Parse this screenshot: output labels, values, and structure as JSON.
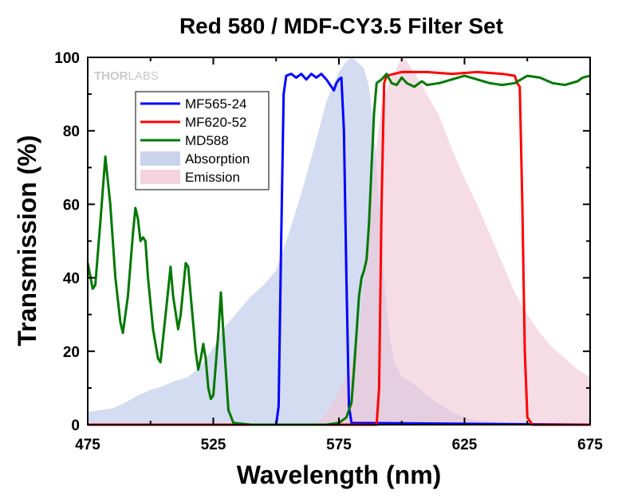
{
  "chart_data": {
    "type": "line",
    "title": "Red 580 / MDF-CY3.5 Filter Set",
    "xlabel": "Wavelength (nm)",
    "ylabel": "Transmission (%)",
    "xlim": [
      475,
      675
    ],
    "ylim": [
      0,
      100
    ],
    "xticks": [
      475,
      525,
      575,
      625,
      675
    ],
    "yticks": [
      0,
      20,
      40,
      60,
      80,
      100
    ],
    "grid": false,
    "legend_position": "top-left",
    "watermark": {
      "text_a": "THOR",
      "text_b": "LABS"
    },
    "series": [
      {
        "name": "MF565-24",
        "kind": "line",
        "color": "#0000ff",
        "points": [
          [
            475,
            0
          ],
          [
            550,
            0
          ],
          [
            551,
            5
          ],
          [
            552,
            50
          ],
          [
            553,
            90
          ],
          [
            554,
            95
          ],
          [
            556,
            95.5
          ],
          [
            558,
            94.5
          ],
          [
            560,
            95.5
          ],
          [
            562,
            94
          ],
          [
            564,
            95.5
          ],
          [
            566,
            94.5
          ],
          [
            568,
            95.5
          ],
          [
            570,
            94
          ],
          [
            572,
            92
          ],
          [
            573,
            91
          ],
          [
            574,
            93
          ],
          [
            575,
            94
          ],
          [
            576,
            94.5
          ],
          [
            577,
            80
          ],
          [
            578,
            40
          ],
          [
            579,
            5
          ],
          [
            580,
            0.5
          ],
          [
            675,
            0
          ]
        ]
      },
      {
        "name": "MF620-52",
        "kind": "line",
        "color": "#ff0000",
        "points": [
          [
            475,
            0
          ],
          [
            590,
            0
          ],
          [
            591,
            10
          ],
          [
            592,
            60
          ],
          [
            593,
            93
          ],
          [
            594,
            95
          ],
          [
            600,
            96
          ],
          [
            610,
            96
          ],
          [
            620,
            95.5
          ],
          [
            630,
            96
          ],
          [
            640,
            95.5
          ],
          [
            645,
            95
          ],
          [
            646,
            93
          ],
          [
            647,
            92
          ],
          [
            648,
            60
          ],
          [
            649,
            20
          ],
          [
            650,
            2
          ],
          [
            652,
            0
          ],
          [
            675,
            0
          ]
        ]
      },
      {
        "name": "MD588",
        "kind": "line",
        "color": "#007700",
        "points": [
          [
            475,
            44
          ],
          [
            477,
            37
          ],
          [
            478,
            38
          ],
          [
            480,
            55
          ],
          [
            482,
            73
          ],
          [
            484,
            60
          ],
          [
            486,
            40
          ],
          [
            488,
            28
          ],
          [
            489,
            25
          ],
          [
            491,
            35
          ],
          [
            493,
            52
          ],
          [
            494,
            59
          ],
          [
            495,
            56
          ],
          [
            496,
            50
          ],
          [
            497,
            51
          ],
          [
            498,
            50
          ],
          [
            499,
            40
          ],
          [
            501,
            26
          ],
          [
            503,
            18
          ],
          [
            504,
            17
          ],
          [
            506,
            30
          ],
          [
            508,
            43
          ],
          [
            509,
            35
          ],
          [
            511,
            26
          ],
          [
            512,
            30
          ],
          [
            514,
            44
          ],
          [
            515,
            43
          ],
          [
            516,
            35
          ],
          [
            518,
            20
          ],
          [
            519,
            15
          ],
          [
            520,
            18
          ],
          [
            521,
            22
          ],
          [
            522,
            18
          ],
          [
            523,
            10
          ],
          [
            524,
            7
          ],
          [
            525,
            8
          ],
          [
            527,
            25
          ],
          [
            528,
            36
          ],
          [
            529,
            25
          ],
          [
            531,
            4
          ],
          [
            533,
            0.5
          ],
          [
            540,
            0
          ],
          [
            570,
            0
          ],
          [
            575,
            0.5
          ],
          [
            578,
            2
          ],
          [
            580,
            6
          ],
          [
            581,
            15
          ],
          [
            582,
            25
          ],
          [
            583,
            35
          ],
          [
            584,
            40
          ],
          [
            585,
            42
          ],
          [
            586,
            45
          ],
          [
            587,
            55
          ],
          [
            588,
            70
          ],
          [
            589,
            85
          ],
          [
            590,
            93
          ],
          [
            592,
            94
          ],
          [
            594,
            95.5
          ],
          [
            596,
            93
          ],
          [
            598,
            92.5
          ],
          [
            600,
            94.5
          ],
          [
            602,
            93
          ],
          [
            605,
            92
          ],
          [
            608,
            93.5
          ],
          [
            610,
            92.5
          ],
          [
            615,
            93
          ],
          [
            620,
            94
          ],
          [
            625,
            95
          ],
          [
            630,
            94
          ],
          [
            635,
            93
          ],
          [
            640,
            92.5
          ],
          [
            645,
            93
          ],
          [
            650,
            95
          ],
          [
            655,
            94.5
          ],
          [
            660,
            93
          ],
          [
            665,
            92.5
          ],
          [
            670,
            93.5
          ],
          [
            672,
            94.5
          ],
          [
            675,
            95
          ]
        ]
      },
      {
        "name": "Absorption",
        "kind": "area",
        "color": "#b8c4e8",
        "points": [
          [
            475,
            3.5
          ],
          [
            480,
            4
          ],
          [
            485,
            4.5
          ],
          [
            490,
            6
          ],
          [
            495,
            8
          ],
          [
            500,
            9.5
          ],
          [
            505,
            10.5
          ],
          [
            510,
            12
          ],
          [
            515,
            13
          ],
          [
            520,
            16
          ],
          [
            525,
            21
          ],
          [
            530,
            27
          ],
          [
            535,
            31
          ],
          [
            540,
            35
          ],
          [
            545,
            38
          ],
          [
            550,
            42
          ],
          [
            555,
            52
          ],
          [
            560,
            63
          ],
          [
            565,
            75
          ],
          [
            570,
            88
          ],
          [
            575,
            96
          ],
          [
            578,
            99
          ],
          [
            580,
            100
          ],
          [
            582,
            99
          ],
          [
            585,
            97
          ],
          [
            587,
            92
          ],
          [
            589,
            80
          ],
          [
            591,
            60
          ],
          [
            593,
            40
          ],
          [
            595,
            25
          ],
          [
            597,
            17
          ],
          [
            600,
            13
          ],
          [
            605,
            11
          ],
          [
            610,
            8
          ],
          [
            615,
            5.5
          ],
          [
            620,
            3.5
          ],
          [
            625,
            2
          ],
          [
            630,
            1.2
          ],
          [
            635,
            0.8
          ],
          [
            640,
            0.5
          ],
          [
            675,
            0
          ]
        ]
      },
      {
        "name": "Emission",
        "kind": "area",
        "color": "#f0c4d4",
        "points": [
          [
            475,
            0
          ],
          [
            565,
            0
          ],
          [
            570,
            3
          ],
          [
            575,
            9
          ],
          [
            578,
            13
          ],
          [
            580,
            17
          ],
          [
            583,
            25
          ],
          [
            586,
            45
          ],
          [
            589,
            70
          ],
          [
            592,
            87
          ],
          [
            595,
            93
          ],
          [
            598,
            97
          ],
          [
            600,
            100
          ],
          [
            602,
            99
          ],
          [
            605,
            96
          ],
          [
            610,
            90
          ],
          [
            615,
            84
          ],
          [
            620,
            75
          ],
          [
            625,
            67
          ],
          [
            630,
            60
          ],
          [
            635,
            52
          ],
          [
            640,
            44
          ],
          [
            645,
            36
          ],
          [
            650,
            30
          ],
          [
            655,
            25
          ],
          [
            660,
            21
          ],
          [
            665,
            18
          ],
          [
            670,
            15
          ],
          [
            675,
            13
          ]
        ]
      }
    ]
  }
}
